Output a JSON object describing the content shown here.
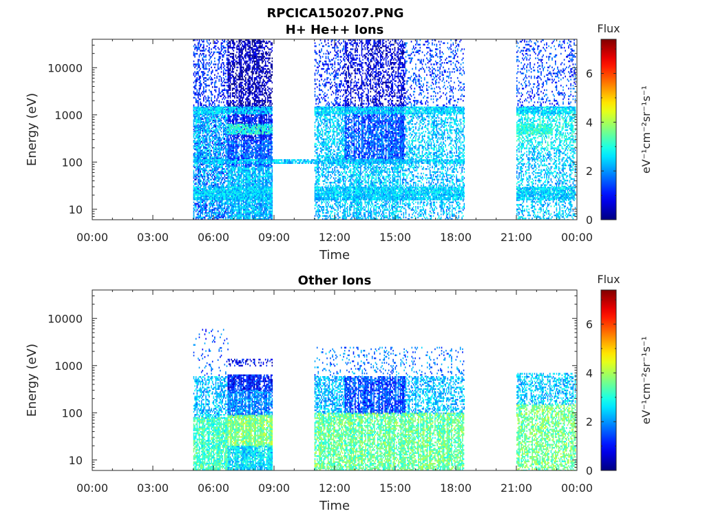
{
  "figure": {
    "title": "RPCICA150207.PNG"
  },
  "colors": {
    "jet_low": "#00008f",
    "jet_mid": "#7fff7f",
    "jet_high": "#7f0000",
    "axis": "#262626"
  },
  "chart_data": [
    {
      "type": "heatmap",
      "title": "H+ He++ Ions",
      "xlabel": "Time",
      "ylabel": "Energy (eV)",
      "yscale": "log",
      "ylim": [
        6,
        40000
      ],
      "xlim": [
        "00:00",
        "24:00"
      ],
      "x_ticks": [
        "00:00",
        "03:00",
        "06:00",
        "09:00",
        "12:00",
        "15:00",
        "18:00",
        "21:00",
        "00:00"
      ],
      "y_ticks": [
        {
          "value": 10,
          "label": "10"
        },
        {
          "value": 100,
          "label": "100"
        },
        {
          "value": 1000,
          "label": "1000"
        },
        {
          "value": 10000,
          "label": "10000"
        }
      ],
      "colorbar": {
        "label": "Flux",
        "unit_label": "eV⁻¹cm⁻²sr⁻¹s⁻¹",
        "ticks": [
          {
            "value": 0,
            "label": "0"
          },
          {
            "value": 2,
            "label": "2"
          },
          {
            "value": 4,
            "label": "4"
          },
          {
            "value": 6,
            "label": "6"
          }
        ],
        "clim": [
          0,
          7.4
        ],
        "colormap": "jet"
      },
      "data_intervals": [
        {
          "start_hour": 5.0,
          "end_hour": 8.9
        },
        {
          "start_hour": 11.0,
          "end_hour": 18.4
        },
        {
          "start_hour": 21.0,
          "end_hour": 23.9
        }
      ],
      "regions": [
        {
          "t0": 5.0,
          "t1": 6.7,
          "e0": 6,
          "e1": 40000,
          "flux": 1.2,
          "density": 0.35
        },
        {
          "t0": 5.0,
          "t1": 6.7,
          "e0": 80,
          "e1": 1500,
          "flux": 2.3,
          "density": 0.55
        },
        {
          "t0": 5.0,
          "t1": 6.7,
          "e0": 6,
          "e1": 80,
          "flux": 2.2,
          "density": 0.5
        },
        {
          "t0": 6.7,
          "t1": 8.9,
          "e0": 1500,
          "e1": 40000,
          "flux": 0.4,
          "density": 0.55
        },
        {
          "t0": 6.7,
          "t1": 8.9,
          "e0": 300,
          "e1": 1500,
          "flux": 1.0,
          "density": 0.85
        },
        {
          "t0": 6.7,
          "t1": 8.9,
          "e0": 80,
          "e1": 300,
          "flux": 1.6,
          "density": 0.9
        },
        {
          "t0": 6.7,
          "t1": 8.9,
          "e0": 6,
          "e1": 80,
          "flux": 2.3,
          "density": 0.85
        },
        {
          "t0": 11.0,
          "t1": 12.5,
          "e0": 1500,
          "e1": 40000,
          "flux": 1.2,
          "density": 0.3
        },
        {
          "t0": 11.0,
          "t1": 12.5,
          "e0": 80,
          "e1": 1500,
          "flux": 2.4,
          "density": 0.55
        },
        {
          "t0": 11.0,
          "t1": 12.5,
          "e0": 6,
          "e1": 80,
          "flux": 2.3,
          "density": 0.45
        },
        {
          "t0": 12.5,
          "t1": 15.5,
          "e0": 1500,
          "e1": 40000,
          "flux": 0.7,
          "density": 0.45
        },
        {
          "t0": 12.5,
          "t1": 15.5,
          "e0": 100,
          "e1": 1500,
          "flux": 1.6,
          "density": 0.75
        },
        {
          "t0": 12.5,
          "t1": 15.5,
          "e0": 6,
          "e1": 100,
          "flux": 2.4,
          "density": 0.6
        },
        {
          "t0": 15.5,
          "t1": 18.4,
          "e0": 1500,
          "e1": 40000,
          "flux": 1.4,
          "density": 0.2
        },
        {
          "t0": 15.5,
          "t1": 18.4,
          "e0": 80,
          "e1": 1500,
          "flux": 2.4,
          "density": 0.45
        },
        {
          "t0": 15.5,
          "t1": 18.4,
          "e0": 6,
          "e1": 80,
          "flux": 2.3,
          "density": 0.35
        },
        {
          "t0": 21.0,
          "t1": 23.9,
          "e0": 1500,
          "e1": 40000,
          "flux": 1.4,
          "density": 0.2
        },
        {
          "t0": 21.0,
          "t1": 23.9,
          "e0": 200,
          "e1": 1500,
          "flux": 2.8,
          "density": 0.45
        },
        {
          "t0": 21.0,
          "t1": 23.9,
          "e0": 6,
          "e1": 200,
          "flux": 2.4,
          "density": 0.4
        }
      ],
      "bands": [
        {
          "e0": 1100,
          "e1": 1500,
          "flux": 2.5,
          "t_ranges": [
            [
              5.0,
              8.9
            ],
            [
              11.0,
              18.4
            ],
            [
              21.0,
              23.9
            ]
          ]
        },
        {
          "e0": 400,
          "e1": 650,
          "flux": 3.0,
          "t_ranges": [
            [
              6.7,
              8.9
            ],
            [
              21.0,
              22.8
            ]
          ]
        },
        {
          "e0": 95,
          "e1": 115,
          "flux": 2.4,
          "t_ranges": [
            [
              5.0,
              18.4
            ]
          ]
        },
        {
          "e0": 22,
          "e1": 30,
          "flux": 2.5,
          "t_ranges": [
            [
              5.0,
              8.9
            ],
            [
              11.0,
              18.4
            ],
            [
              21.0,
              23.9
            ]
          ]
        },
        {
          "e0": 16,
          "e1": 21,
          "flux": 2.4,
          "t_ranges": [
            [
              5.0,
              8.9
            ],
            [
              11.0,
              18.4
            ],
            [
              21.0,
              23.9
            ]
          ]
        }
      ]
    },
    {
      "type": "heatmap",
      "title": "Other Ions",
      "xlabel": "Time",
      "ylabel": "Energy (eV)",
      "yscale": "log",
      "ylim": [
        6,
        40000
      ],
      "xlim": [
        "00:00",
        "24:00"
      ],
      "x_ticks": [
        "00:00",
        "03:00",
        "06:00",
        "09:00",
        "12:00",
        "15:00",
        "18:00",
        "21:00",
        "00:00"
      ],
      "y_ticks": [
        {
          "value": 10,
          "label": "10"
        },
        {
          "value": 100,
          "label": "100"
        },
        {
          "value": 1000,
          "label": "1000"
        },
        {
          "value": 10000,
          "label": "10000"
        }
      ],
      "colorbar": {
        "label": "Flux",
        "unit_label": "eV⁻¹cm⁻²sr⁻¹s⁻¹",
        "ticks": [
          {
            "value": 0,
            "label": "0"
          },
          {
            "value": 2,
            "label": "2"
          },
          {
            "value": 4,
            "label": "4"
          },
          {
            "value": 6,
            "label": "6"
          }
        ],
        "clim": [
          0,
          7.4
        ],
        "colormap": "jet"
      },
      "data_intervals": [
        {
          "start_hour": 5.0,
          "end_hour": 8.9
        },
        {
          "start_hour": 11.0,
          "end_hour": 18.4
        },
        {
          "start_hour": 21.0,
          "end_hour": 23.9
        }
      ],
      "regions": [
        {
          "t0": 5.0,
          "t1": 6.7,
          "e0": 600,
          "e1": 6000,
          "flux": 1.5,
          "density": 0.06
        },
        {
          "t0": 5.0,
          "t1": 6.7,
          "e0": 80,
          "e1": 600,
          "flux": 2.3,
          "density": 0.5
        },
        {
          "t0": 5.0,
          "t1": 6.7,
          "e0": 6,
          "e1": 80,
          "flux": 3.2,
          "density": 0.75
        },
        {
          "t0": 6.7,
          "t1": 8.9,
          "e0": 1000,
          "e1": 1400,
          "flux": 0.8,
          "density": 0.35
        },
        {
          "t0": 6.7,
          "t1": 8.9,
          "e0": 300,
          "e1": 650,
          "flux": 1.1,
          "density": 0.85
        },
        {
          "t0": 6.7,
          "t1": 8.9,
          "e0": 90,
          "e1": 300,
          "flux": 1.9,
          "density": 0.9
        },
        {
          "t0": 6.7,
          "t1": 8.9,
          "e0": 20,
          "e1": 90,
          "flux": 3.7,
          "density": 0.95
        },
        {
          "t0": 6.7,
          "t1": 8.9,
          "e0": 6,
          "e1": 20,
          "flux": 2.6,
          "density": 0.9
        },
        {
          "t0": 11.0,
          "t1": 18.4,
          "e0": 600,
          "e1": 2500,
          "flux": 1.8,
          "density": 0.12
        },
        {
          "t0": 11.0,
          "t1": 12.5,
          "e0": 100,
          "e1": 600,
          "flux": 2.3,
          "density": 0.55
        },
        {
          "t0": 12.5,
          "t1": 15.5,
          "e0": 100,
          "e1": 600,
          "flux": 1.5,
          "density": 0.75
        },
        {
          "t0": 15.5,
          "t1": 18.4,
          "e0": 100,
          "e1": 600,
          "flux": 2.3,
          "density": 0.5
        },
        {
          "t0": 11.0,
          "t1": 18.4,
          "e0": 6,
          "e1": 100,
          "flux": 3.5,
          "density": 0.7
        },
        {
          "t0": 21.0,
          "t1": 23.9,
          "e0": 150,
          "e1": 700,
          "flux": 2.4,
          "density": 0.45
        },
        {
          "t0": 21.0,
          "t1": 23.9,
          "e0": 6,
          "e1": 150,
          "flux": 3.6,
          "density": 0.6
        }
      ],
      "bands": []
    }
  ]
}
